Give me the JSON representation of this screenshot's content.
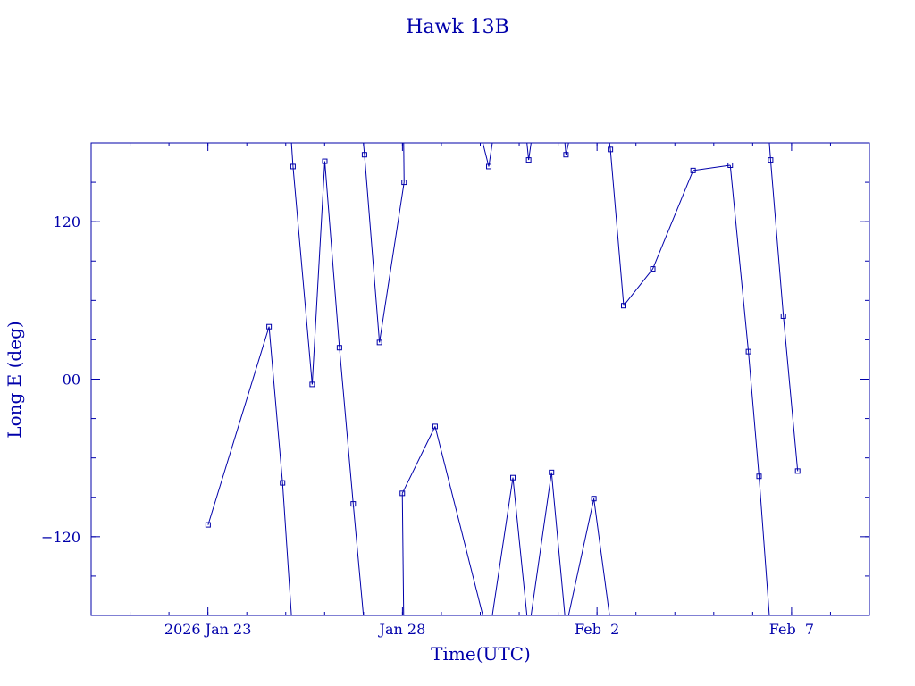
{
  "chart_data": {
    "type": "line",
    "title": "Hawk 13B",
    "xlabel": "Time(UTC)",
    "ylabel": "Long E (deg)",
    "color": "#0000aa",
    "marker": "square",
    "ylim": [
      -180,
      180
    ],
    "yticks": [
      {
        "value": 120,
        "label": "120"
      },
      {
        "value": 0,
        "label": "00"
      },
      {
        "value": -120,
        "label": "−120"
      }
    ],
    "xlim": [
      "2026-01-20T00:00",
      "2026-02-09T00:00"
    ],
    "xticks": [
      {
        "value": "2026-01-23T00:00",
        "label": "2026 Jan 23"
      },
      {
        "value": "2026-01-28T00:00",
        "label": "Jan 28"
      },
      {
        "value": "2026-02-02T00:00",
        "label": "Feb  2"
      },
      {
        "value": "2026-02-07T00:00",
        "label": "Feb  7"
      }
    ],
    "points": [
      {
        "x": "2026-01-23T00:08",
        "y": -111
      },
      {
        "x": "2026-01-24T13:44",
        "y": 40
      },
      {
        "x": "2026-01-24T22:03",
        "y": -79
      },
      {
        "x": "2026-01-25T04:30",
        "y": 162
      },
      {
        "x": "2026-01-25T16:20",
        "y": -4
      },
      {
        "x": "2026-01-26T00:06",
        "y": 166
      },
      {
        "x": "2026-01-26T09:08",
        "y": 24
      },
      {
        "x": "2026-01-26T17:38",
        "y": -95
      },
      {
        "x": "2026-01-27T00:35",
        "y": 171
      },
      {
        "x": "2026-01-27T09:49",
        "y": 28
      },
      {
        "x": "2026-01-28T01:01",
        "y": 150
      },
      {
        "x": "2026-01-27T23:55",
        "y": -87
      },
      {
        "x": "2026-01-28T20:08",
        "y": -36
      },
      {
        "x": "2026-01-30T05:15",
        "y": 162
      },
      {
        "x": "2026-01-30T20:08",
        "y": -75
      },
      {
        "x": "2026-01-31T05:50",
        "y": 167
      },
      {
        "x": "2026-01-31T19:56",
        "y": -71
      },
      {
        "x": "2026-02-01T04:51",
        "y": 171
      },
      {
        "x": "2026-02-01T22:03",
        "y": -91
      },
      {
        "x": "2026-02-02T08:15",
        "y": 175
      },
      {
        "x": "2026-02-02T16:27",
        "y": 56
      },
      {
        "x": "2026-02-03T10:22",
        "y": 84
      },
      {
        "x": "2026-02-04T11:15",
        "y": 159
      },
      {
        "x": "2026-02-05T10:10",
        "y": 163
      },
      {
        "x": "2026-02-05T21:23",
        "y": 21
      },
      {
        "x": "2026-02-06T03:56",
        "y": -74
      },
      {
        "x": "2026-02-06T11:03",
        "y": 167
      },
      {
        "x": "2026-02-06T18:57",
        "y": 48
      },
      {
        "x": "2026-02-07T03:45",
        "y": -70
      }
    ]
  }
}
